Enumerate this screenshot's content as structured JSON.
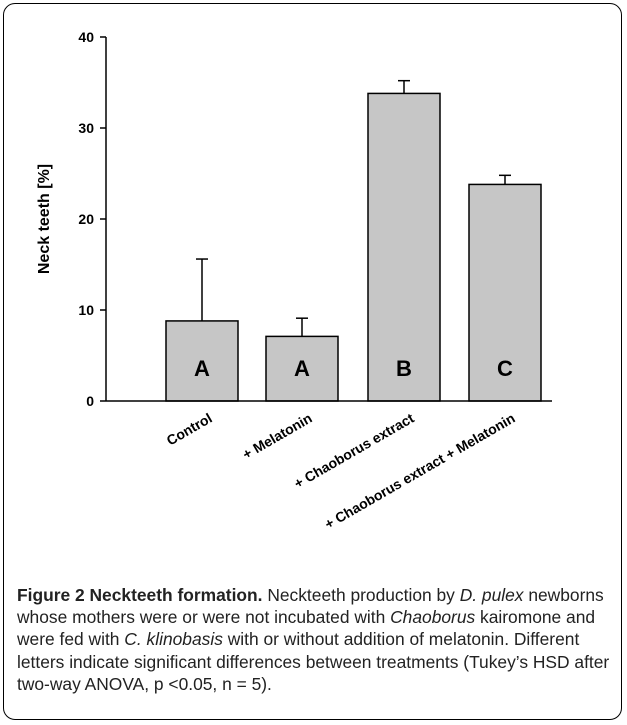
{
  "chart_data": {
    "type": "bar",
    "categories": [
      "Control",
      "+ Melatonin",
      "+ Chaoborus extract",
      "+ Chaoborus extract + Melatonin"
    ],
    "values": [
      8.8,
      7.1,
      33.8,
      23.8
    ],
    "error_upper": [
      15.6,
      9.1,
      35.2,
      24.8
    ],
    "group_letters": [
      "A",
      "A",
      "B",
      "C"
    ],
    "ylabel": "Neck teeth [%]",
    "xlabel": "",
    "ylim": [
      0,
      40
    ],
    "yticks": [
      0,
      10,
      20,
      30,
      40
    ],
    "bar_color": "#c6c6c6",
    "grid": false
  },
  "caption": {
    "figure_label": "Figure 2",
    "figure_title": "Neckteeth formation.",
    "segments": [
      {
        "text": " Neckteeth production by ",
        "italic": false
      },
      {
        "text": "D. pulex",
        "italic": true
      },
      {
        "text": " newborns whose mothers were or were not incubated with ",
        "italic": false
      },
      {
        "text": "Chaoborus",
        "italic": true
      },
      {
        "text": " kairomone and were fed with ",
        "italic": false
      },
      {
        "text": "C. klinobasis",
        "italic": true
      },
      {
        "text": " with or without addition of melatonin. Different letters indicate significant differences between treatments (Tukey’s HSD after two-way ANOVA, p <0.05, n = 5).",
        "italic": false
      }
    ]
  }
}
